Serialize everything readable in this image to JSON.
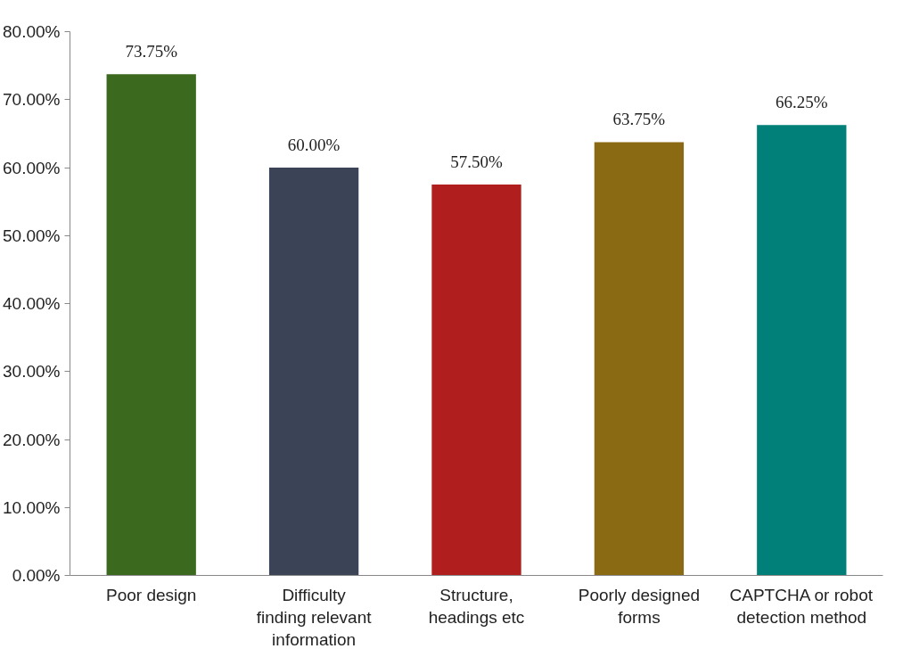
{
  "chart_data": {
    "type": "bar",
    "categories": [
      "Poor design",
      "Difficulty finding relevant information",
      "Structure, headings etc",
      "Poorly designed forms",
      "CAPTCHA or robot detection method"
    ],
    "values": [
      73.75,
      60.0,
      57.5,
      63.75,
      66.25
    ],
    "colors": [
      "#3b6a1e",
      "#3a4456",
      "#b01e1e",
      "#8a6a12",
      "#008079"
    ],
    "value_labels": [
      "73.75%",
      "60.00%",
      "57.50%",
      "63.75%",
      "66.25%"
    ],
    "ylim": [
      0,
      80
    ],
    "yticks": [
      {
        "value": 0,
        "label": "0.00%"
      },
      {
        "value": 10,
        "label": "10.00%"
      },
      {
        "value": 20,
        "label": "20.00%"
      },
      {
        "value": 30,
        "label": "30.00%"
      },
      {
        "value": 40,
        "label": "40.00%"
      },
      {
        "value": 50,
        "label": "50.00%"
      },
      {
        "value": 60,
        "label": "60.00%"
      },
      {
        "value": 70,
        "label": "70.00%"
      },
      {
        "value": 80,
        "label": "80.00%"
      }
    ],
    "grid": false
  }
}
